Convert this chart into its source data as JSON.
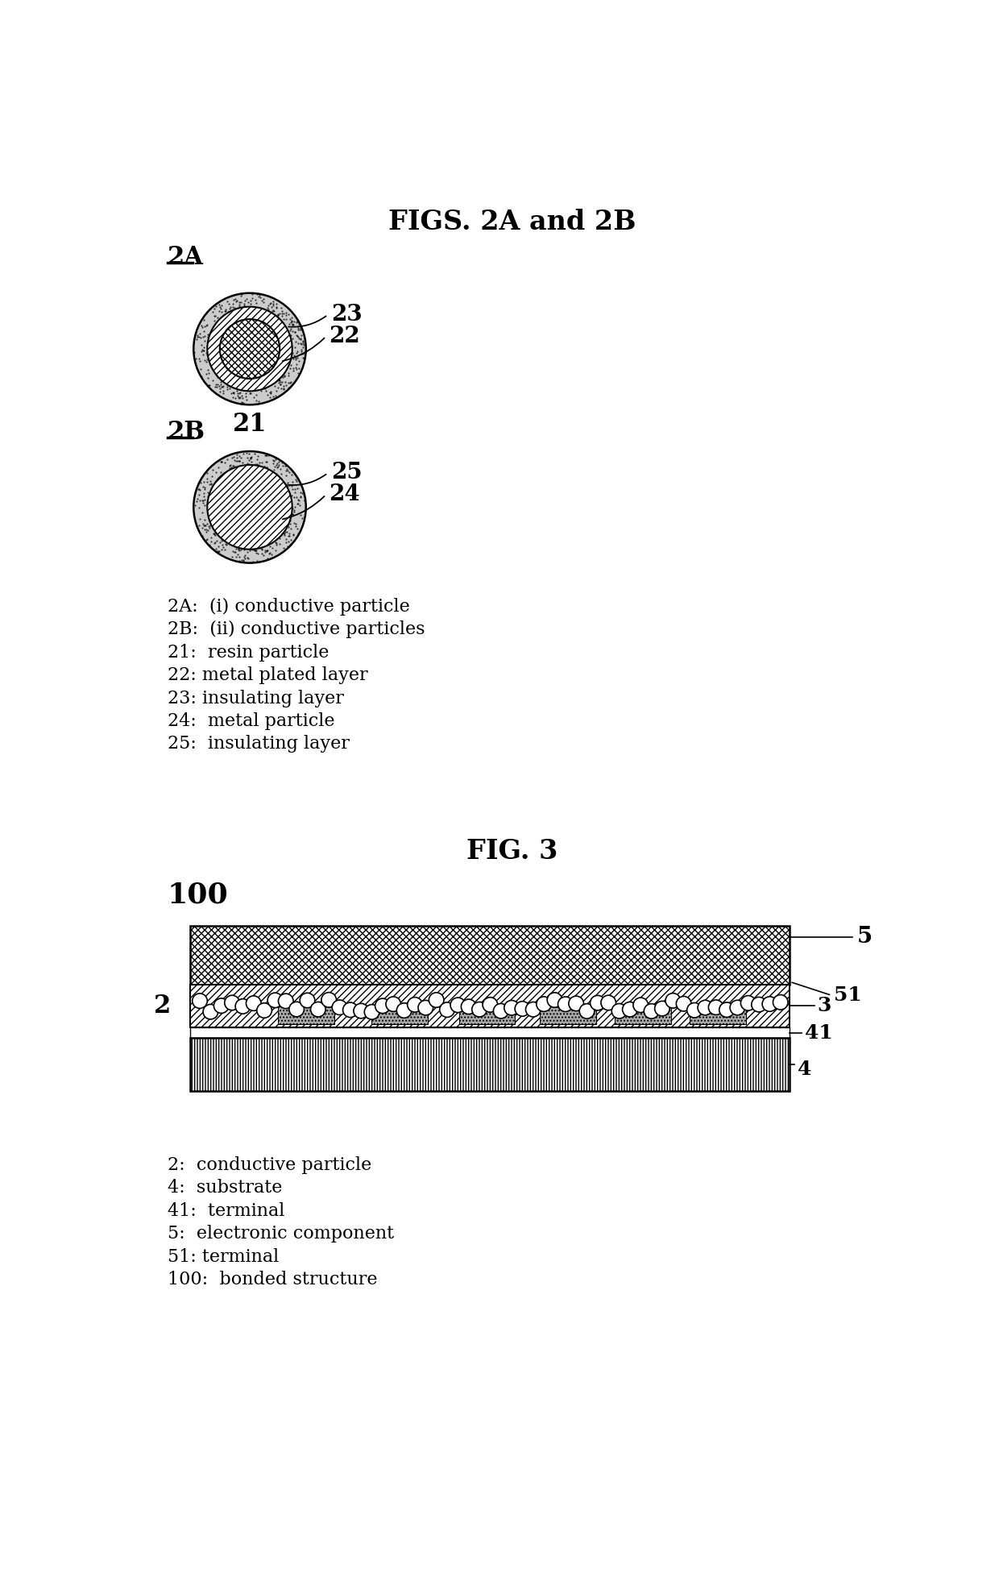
{
  "title": "FIGS. 2A and 2B",
  "fig3_title": "FIG. 3",
  "bg_color": "#ffffff",
  "label_2A": "2A",
  "label_2B": "2B",
  "label_100": "100",
  "num_21": "21",
  "num_22": "22",
  "num_23": "23",
  "num_24": "24",
  "num_25": "25",
  "num_2": "2",
  "num_3": "3",
  "num_4": "4",
  "num_41": "41",
  "num_5": "5",
  "num_51": "51",
  "legend_lines": [
    "2A:  (i) conductive particle",
    "2B:  (ii) conductive particles",
    "21:  resin particle",
    "22: metal plated layer",
    "23: insulating layer",
    "24:  metal particle",
    "25:  insulating layer"
  ],
  "legend3_lines": [
    "2:  conductive particle",
    "4:  substrate",
    "41:  terminal",
    "5:  electronic component",
    "51: terminal",
    "100:  bonded structure"
  ]
}
